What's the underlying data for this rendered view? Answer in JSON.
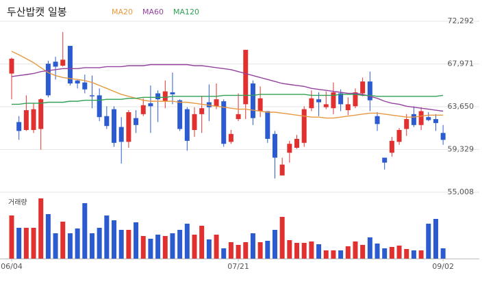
{
  "chart_data": {
    "type": "candlestick",
    "title": "두산밥캣 일봉",
    "volume_label": "거래량",
    "categories": [
      "06/04",
      null,
      null,
      null,
      null,
      null,
      null,
      null,
      null,
      null,
      null,
      null,
      null,
      null,
      null,
      null,
      null,
      null,
      null,
      null,
      null,
      null,
      null,
      null,
      null,
      null,
      null,
      null,
      null,
      null,
      null,
      "07/21",
      null,
      null,
      null,
      null,
      null,
      null,
      null,
      null,
      null,
      null,
      null,
      null,
      null,
      null,
      null,
      null,
      null,
      null,
      null,
      null,
      null,
      null,
      null,
      null,
      null,
      null,
      null,
      "09/02"
    ],
    "open": [
      67000,
      62100,
      61300,
      61300,
      61400,
      68000,
      68200,
      67800,
      69800,
      66300,
      66100,
      64800,
      64800,
      62700,
      63400,
      61600,
      60100,
      62500,
      62900,
      64000,
      65000,
      64200,
      65100,
      64300,
      63400,
      61300,
      62900,
      64100,
      63700,
      64200,
      60100,
      62400,
      63900,
      66000,
      63200,
      63200,
      60900,
      56700,
      59000,
      59500,
      60000,
      63500,
      64400,
      63600,
      63500,
      65000,
      63300,
      63700,
      65000,
      66200,
      62700,
      58500,
      59000,
      60100,
      61400,
      62900,
      61800,
      62600,
      62400,
      61000
    ],
    "close": [
      68500,
      61200,
      63300,
      63400,
      64400,
      64800,
      67700,
      68400,
      66000,
      66000,
      65400,
      64700,
      62600,
      61700,
      60000,
      60100,
      63100,
      61800,
      63800,
      63700,
      64400,
      65200,
      64900,
      61400,
      60200,
      62900,
      63500,
      63600,
      64400,
      59900,
      60900,
      62900,
      69400,
      62500,
      64500,
      60400,
      58500,
      57800,
      59900,
      60400,
      63400,
      64500,
      64100,
      63900,
      65100,
      63900,
      63900,
      65100,
      66200,
      64300,
      61900,
      58000,
      60200,
      61300,
      62400,
      61800,
      63200,
      62300,
      62000,
      60300
    ],
    "high": [
      68600,
      62700,
      64800,
      64000,
      64500,
      68300,
      68700,
      71200,
      69800,
      66400,
      66900,
      66800,
      65500,
      63700,
      63700,
      62600,
      63300,
      63300,
      64500,
      65800,
      65300,
      66300,
      67100,
      64400,
      63600,
      63600,
      64700,
      65900,
      66000,
      64400,
      61300,
      65000,
      69400,
      66300,
      65700,
      63200,
      61200,
      58500,
      60200,
      60800,
      63700,
      65300,
      65100,
      65200,
      66100,
      65400,
      64600,
      65500,
      66600,
      67200,
      63100,
      58500,
      60600,
      61500,
      62900,
      63700,
      63600,
      63100,
      62900,
      61800
    ],
    "low": [
      64400,
      60300,
      61200,
      61000,
      59300,
      64600,
      66400,
      67700,
      65800,
      65500,
      65000,
      63500,
      62200,
      61400,
      59600,
      57900,
      59500,
      61000,
      62700,
      61000,
      62100,
      63500,
      63900,
      61200,
      59200,
      60600,
      61000,
      62200,
      63400,
      59600,
      59900,
      62200,
      62400,
      61800,
      62600,
      60000,
      56400,
      56700,
      58000,
      59400,
      59600,
      63200,
      62700,
      63400,
      62900,
      63200,
      62800,
      63500,
      64700,
      63200,
      61200,
      57300,
      58600,
      59800,
      60700,
      61600,
      61300,
      62200,
      61200,
      59800
    ],
    "volume": [
      63,
      45,
      45,
      45,
      88,
      65,
      37,
      54,
      37,
      44,
      81,
      37,
      45,
      63,
      56,
      42,
      42,
      53,
      33,
      29,
      35,
      33,
      37,
      42,
      51,
      35,
      48,
      28,
      35,
      15,
      24,
      20,
      24,
      37,
      24,
      26,
      42,
      61,
      27,
      23,
      23,
      25,
      21,
      12,
      12,
      12,
      18,
      25,
      20,
      31,
      22,
      15,
      17,
      19,
      14,
      12,
      12,
      51,
      58,
      15
    ],
    "series": [
      {
        "name": "MA20",
        "color": "#e8983e",
        "values": [
          69250,
          68900,
          68500,
          68100,
          67600,
          67100,
          66800,
          66600,
          66500,
          66400,
          66300,
          66100,
          65800,
          65500,
          65200,
          64900,
          64700,
          64500,
          64300,
          64200,
          64200,
          64200,
          64200,
          64100,
          64100,
          64000,
          63900,
          63800,
          63700,
          63600,
          63500,
          63400,
          63400,
          63300,
          63200,
          63100,
          63100,
          63000,
          62900,
          62800,
          62700,
          62600,
          62600,
          62500,
          62500,
          62600,
          62700,
          62800,
          62900,
          63000,
          63000,
          62900,
          62800,
          62700,
          62600,
          62600,
          62700,
          62800,
          62800,
          62800
        ]
      },
      {
        "name": "MA60",
        "color": "#93409e",
        "values": [
          66700,
          66800,
          66900,
          67000,
          67200,
          67300,
          67400,
          67500,
          67500,
          67500,
          67600,
          67600,
          67600,
          67700,
          67700,
          67700,
          67800,
          67800,
          67800,
          67900,
          67900,
          67900,
          67900,
          67900,
          67900,
          67800,
          67800,
          67700,
          67600,
          67500,
          67400,
          67200,
          67000,
          66800,
          66600,
          66400,
          66200,
          66000,
          65900,
          65800,
          65700,
          65500,
          65400,
          65300,
          65200,
          65100,
          65000,
          65000,
          64900,
          64700,
          64500,
          64200,
          64000,
          63900,
          63700,
          63600,
          63500,
          63400,
          63300,
          63200
        ]
      },
      {
        "name": "MA120",
        "color": "#2fa054",
        "values": [
          63900,
          63900,
          64000,
          64000,
          64000,
          64100,
          64100,
          64100,
          64200,
          64200,
          64300,
          64300,
          64300,
          64400,
          64400,
          64400,
          64500,
          64500,
          64600,
          64600,
          64600,
          64600,
          64700,
          64700,
          64700,
          64700,
          64700,
          64700,
          64700,
          64800,
          64800,
          64800,
          64800,
          64800,
          64900,
          64900,
          64900,
          64900,
          64900,
          64900,
          64900,
          64800,
          64800,
          64800,
          64800,
          64900,
          64900,
          64900,
          64800,
          64800,
          64700,
          64700,
          64700,
          64700,
          64700,
          64700,
          64700,
          64700,
          64700,
          64800
        ]
      }
    ],
    "ylim": [
      55008,
      72292
    ],
    "yticks": [
      {
        "value": 55008,
        "label": "55,008"
      },
      {
        "value": 59329,
        "label": "59,329"
      },
      {
        "value": 63650,
        "label": "63,650"
      },
      {
        "value": 67971,
        "label": "67,971"
      },
      {
        "value": 72292,
        "label": "72,292"
      }
    ],
    "up_color": "#e0302f",
    "down_color": "#2b5bcf",
    "grid": true
  }
}
